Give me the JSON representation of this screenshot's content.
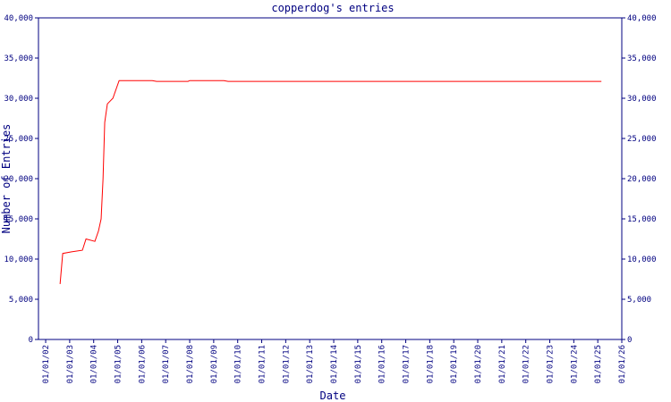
{
  "chart_data": {
    "type": "line",
    "title": "copperdog's entries",
    "x_label": "Date",
    "y_label": "Number of Entries",
    "series": [
      {
        "name": "entries",
        "color": "#ff0000",
        "x": [
          2002.6,
          2002.71,
          2003.08,
          2003.53,
          2003.68,
          2004.05,
          2004.2,
          2004.31,
          2004.39,
          2004.46,
          2004.57,
          2004.8,
          2005.06,
          2006.44,
          2006.62,
          2007.93,
          2008.0,
          2009.42,
          2009.6,
          2025.15
        ],
        "values": [
          6900,
          10700,
          10900,
          11100,
          12500,
          12200,
          13500,
          15000,
          20000,
          27000,
          29300,
          30000,
          32200,
          32200,
          32100,
          32100,
          32200,
          32200,
          32100,
          32100
        ]
      }
    ],
    "xlim": [
      2001.7,
      2026
    ],
    "xticks": [
      {
        "value": 2002,
        "label": "01/01/02"
      },
      {
        "value": 2003,
        "label": "01/01/03"
      },
      {
        "value": 2004,
        "label": "01/01/04"
      },
      {
        "value": 2005,
        "label": "01/01/05"
      },
      {
        "value": 2006,
        "label": "01/01/06"
      },
      {
        "value": 2007,
        "label": "01/01/07"
      },
      {
        "value": 2008,
        "label": "01/01/08"
      },
      {
        "value": 2009,
        "label": "01/01/09"
      },
      {
        "value": 2010,
        "label": "01/01/10"
      },
      {
        "value": 2011,
        "label": "01/01/11"
      },
      {
        "value": 2012,
        "label": "01/01/12"
      },
      {
        "value": 2013,
        "label": "01/01/13"
      },
      {
        "value": 2014,
        "label": "01/01/14"
      },
      {
        "value": 2015,
        "label": "01/01/15"
      },
      {
        "value": 2016,
        "label": "01/01/16"
      },
      {
        "value": 2017,
        "label": "01/01/17"
      },
      {
        "value": 2018,
        "label": "01/01/18"
      },
      {
        "value": 2019,
        "label": "01/01/19"
      },
      {
        "value": 2020,
        "label": "01/01/20"
      },
      {
        "value": 2021,
        "label": "01/01/21"
      },
      {
        "value": 2022,
        "label": "01/01/22"
      },
      {
        "value": 2023,
        "label": "01/01/23"
      },
      {
        "value": 2024,
        "label": "01/01/24"
      },
      {
        "value": 2025,
        "label": "01/01/25"
      },
      {
        "value": 2026,
        "label": "01/01/26"
      }
    ],
    "ylim": [
      0,
      40000
    ],
    "yticks": [
      0,
      {
        "value": 5000,
        "label": "5,000"
      },
      {
        "value": 10000,
        "label": "10,000"
      },
      {
        "value": 15000,
        "label": "15,000"
      },
      {
        "value": 20000,
        "label": "20,000"
      },
      {
        "value": 25000,
        "label": "25,000"
      },
      {
        "value": 30000,
        "label": "30,000"
      },
      {
        "value": 35000,
        "label": "35,000"
      },
      {
        "value": 40000,
        "label": "40,000"
      }
    ],
    "axis_color": "#000080"
  }
}
